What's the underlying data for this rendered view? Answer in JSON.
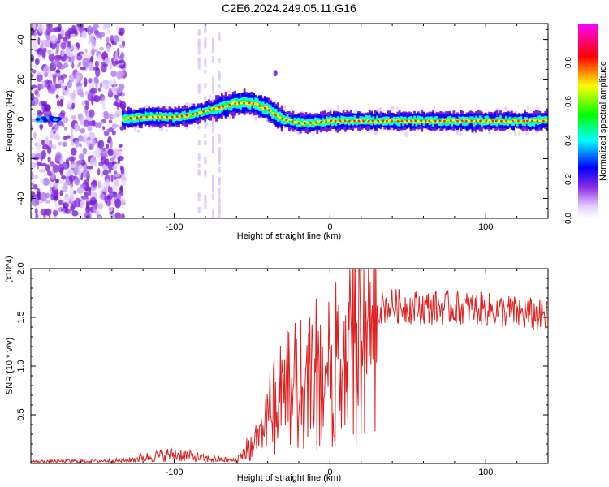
{
  "title": "C2E6.2024.249.05.11.G16",
  "chart_data": [
    {
      "type": "heatmap",
      "xlabel": "Height of straight line (km)",
      "ylabel": "Frequency (Hz)",
      "xlim": [
        -192,
        140
      ],
      "ylim": [
        -50,
        48
      ],
      "xticks": [
        -100,
        0,
        100
      ],
      "yticks": [
        -40,
        -20,
        0,
        20,
        40
      ],
      "colorbar": {
        "label": "Normalized spectral amplitude",
        "range": [
          0,
          1
        ],
        "ticks": [
          "0.0",
          "0.2",
          "0.4",
          "0.6",
          "0.8"
        ],
        "colormap": [
          "#ffffff",
          "#8a2be2",
          "#0000ff",
          "#00ffff",
          "#00ff00",
          "#ffff00",
          "#ff0000",
          "#ff00ff"
        ]
      },
      "ridge": {
        "x": [
          -135,
          -120,
          -100,
          -90,
          -80,
          -70,
          -60,
          -50,
          -40,
          -35,
          -30,
          -20,
          -10,
          0,
          20,
          40,
          60,
          80,
          100,
          120,
          140
        ],
        "y": [
          0,
          1,
          1,
          2,
          4,
          6,
          8,
          8,
          5,
          2,
          0,
          -2,
          -2,
          -1,
          -1,
          -1,
          -1,
          -1,
          -1,
          -1,
          -1
        ]
      },
      "noise_region": [
        -192,
        -132
      ]
    },
    {
      "type": "line",
      "xlabel": "Height of straight line (km)",
      "ylabel": "SNR (10 * v/v)",
      "multiplier": "(x10^4)",
      "xlim": [
        -192,
        140
      ],
      "ylim": [
        0,
        2.0
      ],
      "xticks": [
        -100,
        0,
        100
      ],
      "yticks": [
        "0.5",
        "1.0",
        "1.5",
        "2.0"
      ],
      "color": "#e02020",
      "envelope": {
        "x": [
          -192,
          -130,
          -120,
          -100,
          -80,
          -60,
          -50,
          -40,
          -30,
          -20,
          -10,
          0,
          10,
          20,
          30,
          40,
          60,
          80,
          100,
          120,
          140
        ],
        "y": [
          0.02,
          0.03,
          0.06,
          0.1,
          0.05,
          0.03,
          0.25,
          0.6,
          0.85,
          1.0,
          1.1,
          1.25,
          1.4,
          1.55,
          1.6,
          1.62,
          1.6,
          1.6,
          1.58,
          1.55,
          1.5
        ]
      }
    }
  ]
}
